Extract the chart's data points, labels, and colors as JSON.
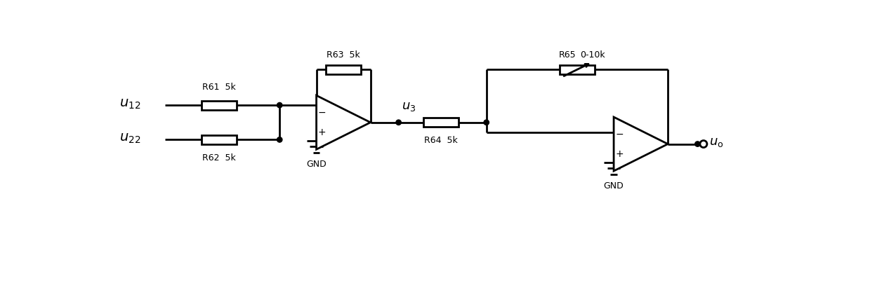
{
  "figsize": [
    12.39,
    4.04
  ],
  "dpi": 100,
  "lw": 2.0,
  "color": "black",
  "background": "white",
  "xlim": [
    0,
    12.39
  ],
  "ylim": [
    0,
    4.04
  ]
}
